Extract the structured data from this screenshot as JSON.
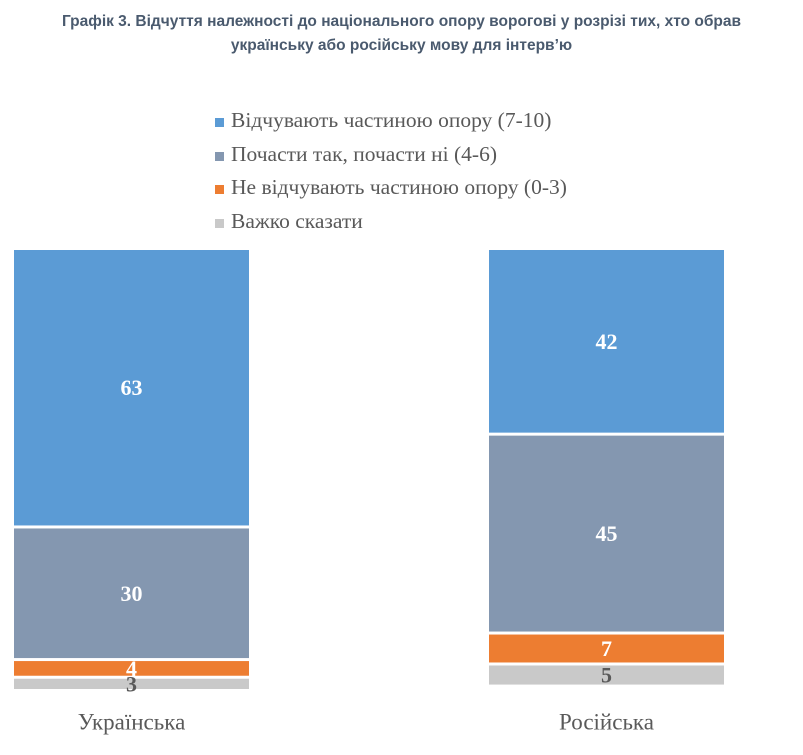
{
  "chart_data": {
    "type": "bar",
    "stacked": true,
    "title_lines": [
      "Графік 3. Відчуття належності до національного опору ворогові у розрізі тих, хто обрав",
      "українську або російську мову для інтерв’ю"
    ],
    "categories": [
      "Українська",
      "Російська"
    ],
    "series": [
      {
        "name": "Відчувають частиною опору (7-10)",
        "values": [
          63,
          42
        ],
        "color": "#5b9bd5",
        "label_color": "#ffffff"
      },
      {
        "name": "Почасти так, почасти ні (4-6)",
        "values": [
          30,
          45
        ],
        "color": "#8497b0",
        "label_color": "#ffffff"
      },
      {
        "name": "Не відчувають частиною опору (0-3)",
        "values": [
          4,
          7
        ],
        "color": "#ed7d31",
        "label_color": "#ffffff"
      },
      {
        "name": "Важко сказати",
        "values": [
          3,
          5
        ],
        "color": "#c9c9c9",
        "label_color": "#595959"
      }
    ],
    "ylim": [
      0,
      100
    ],
    "xlabel": "",
    "ylabel": "",
    "grid": false,
    "legend_position": "top-center"
  }
}
